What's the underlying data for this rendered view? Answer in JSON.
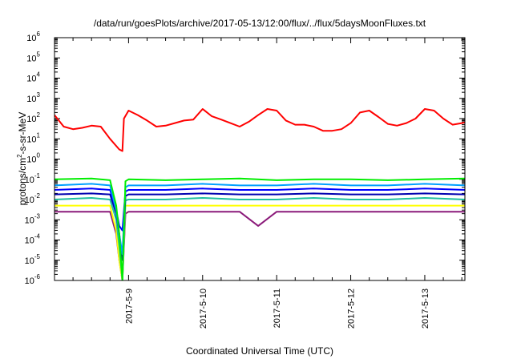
{
  "chart_data": {
    "type": "line",
    "title": "/data/run/goesPlots/archive/2017-05-13/12:00/flux/../flux/5daysMoonFluxes.txt",
    "xlabel": "Coordinated Universal Time (UTC)",
    "ylabel": {
      "pre": "protons/cm",
      "sup": "2",
      "post": "-s-sr-MeV"
    },
    "y_scale": "log",
    "ylim": [
      1e-06,
      1000000
    ],
    "y_ticks": [
      {
        "base": "10",
        "exp": "-6"
      },
      {
        "base": "10",
        "exp": "-5"
      },
      {
        "base": "10",
        "exp": "-4"
      },
      {
        "base": "10",
        "exp": "-3"
      },
      {
        "base": "10",
        "exp": "-2"
      },
      {
        "base": "10",
        "exp": "-1"
      },
      {
        "base": "10",
        "exp": "0"
      },
      {
        "base": "10",
        "exp": "1"
      },
      {
        "base": "10",
        "exp": "2"
      },
      {
        "base": "10",
        "exp": "3"
      },
      {
        "base": "10",
        "exp": "4"
      },
      {
        "base": "10",
        "exp": "5"
      },
      {
        "base": "10",
        "exp": "6"
      }
    ],
    "xlim": [
      "2017-05-08 00:00",
      "2017-05-13 13:00"
    ],
    "x_ticks": [
      "2017-5-9",
      "2017-5-10",
      "2017-5-11",
      "2017-5-12",
      "2017-5-13"
    ],
    "grid": false,
    "legend": "none",
    "series": [
      {
        "color": "#ff0000",
        "x": [
          "2017-05-08 00:00",
          "2017-05-08 03:00",
          "2017-05-08 06:00",
          "2017-05-08 09:00",
          "2017-05-08 12:00",
          "2017-05-08 15:00",
          "2017-05-08 18:00",
          "2017-05-08 21:00",
          "2017-05-08 22:00",
          "2017-05-08 22:30",
          "2017-05-09 00:00",
          "2017-05-09 03:00",
          "2017-05-09 06:00",
          "2017-05-09 09:00",
          "2017-05-09 12:00",
          "2017-05-09 15:00",
          "2017-05-09 18:00",
          "2017-05-09 21:00",
          "2017-05-10 00:00",
          "2017-05-10 03:00",
          "2017-05-10 06:00",
          "2017-05-10 09:00",
          "2017-05-10 12:00",
          "2017-05-10 15:00",
          "2017-05-10 18:00",
          "2017-05-10 21:00",
          "2017-05-11 00:00",
          "2017-05-11 03:00",
          "2017-05-11 06:00",
          "2017-05-11 09:00",
          "2017-05-11 12:00",
          "2017-05-11 15:00",
          "2017-05-11 18:00",
          "2017-05-11 21:00",
          "2017-05-12 00:00",
          "2017-05-12 03:00",
          "2017-05-12 06:00",
          "2017-05-12 09:00",
          "2017-05-12 12:00",
          "2017-05-12 15:00",
          "2017-05-12 18:00",
          "2017-05-12 21:00",
          "2017-05-13 00:00",
          "2017-05-13 03:00",
          "2017-05-13 06:00",
          "2017-05-13 09:00",
          "2017-05-13 12:00",
          "2017-05-13 13:00"
        ],
        "y": [
          150,
          40,
          30,
          35,
          45,
          40,
          10,
          3,
          2.5,
          100,
          250,
          150,
          80,
          40,
          45,
          60,
          80,
          90,
          300,
          130,
          90,
          60,
          40,
          70,
          150,
          300,
          250,
          80,
          50,
          50,
          40,
          25,
          25,
          30,
          60,
          200,
          250,
          120,
          55,
          45,
          60,
          100,
          300,
          250,
          100,
          50,
          60,
          65
        ]
      },
      {
        "color": "#00ee00",
        "x": [
          "2017-05-08 00:00",
          "2017-05-08 12:00",
          "2017-05-08 18:00",
          "2017-05-08 20:00",
          "2017-05-08 21:00",
          "2017-05-08 22:00",
          "2017-05-08 23:00",
          "2017-05-09 00:00",
          "2017-05-09 12:00",
          "2017-05-10 00:00",
          "2017-05-10 12:00",
          "2017-05-11 00:00",
          "2017-05-11 12:00",
          "2017-05-12 00:00",
          "2017-05-12 12:00",
          "2017-05-13 00:00",
          "2017-05-13 13:00"
        ],
        "y": [
          0.1,
          0.11,
          0.09,
          0.005,
          0.0002,
          1e-06,
          0.08,
          0.1,
          0.09,
          0.1,
          0.11,
          0.09,
          0.1,
          0.1,
          0.09,
          0.1,
          0.11
        ]
      },
      {
        "color": "#00a0ff",
        "x": [
          "2017-05-08 00:00",
          "2017-05-08 12:00",
          "2017-05-08 18:00",
          "2017-05-08 20:00",
          "2017-05-08 21:00",
          "2017-05-08 22:00",
          "2017-05-08 23:00",
          "2017-05-09 00:00",
          "2017-05-09 12:00",
          "2017-05-10 00:00",
          "2017-05-10 12:00",
          "2017-05-11 00:00",
          "2017-05-11 12:00",
          "2017-05-12 00:00",
          "2017-05-12 12:00",
          "2017-05-13 00:00",
          "2017-05-13 13:00"
        ],
        "y": [
          0.05,
          0.06,
          0.05,
          0.003,
          0.0002,
          2e-05,
          0.04,
          0.05,
          0.05,
          0.06,
          0.05,
          0.05,
          0.06,
          0.05,
          0.05,
          0.06,
          0.05
        ]
      },
      {
        "color": "#0000ff",
        "x": [
          "2017-05-08 00:00",
          "2017-05-08 12:00",
          "2017-05-08 18:00",
          "2017-05-08 20:00",
          "2017-05-08 21:00",
          "2017-05-08 22:00",
          "2017-05-08 23:00",
          "2017-05-09 00:00",
          "2017-05-09 12:00",
          "2017-05-10 00:00",
          "2017-05-10 12:00",
          "2017-05-11 00:00",
          "2017-05-11 12:00",
          "2017-05-12 00:00",
          "2017-05-12 12:00",
          "2017-05-13 00:00",
          "2017-05-13 13:00"
        ],
        "y": [
          0.03,
          0.035,
          0.03,
          0.003,
          0.0005,
          0.0003,
          0.025,
          0.03,
          0.03,
          0.035,
          0.03,
          0.03,
          0.035,
          0.03,
          0.03,
          0.035,
          0.03
        ]
      },
      {
        "color": "#0000b0",
        "x": [
          "2017-05-08 00:00",
          "2017-05-08 12:00",
          "2017-05-08 18:00",
          "2017-05-08 20:00",
          "2017-05-08 21:00",
          "2017-05-08 22:00",
          "2017-05-08 23:00",
          "2017-05-09 00:00",
          "2017-05-09 12:00",
          "2017-05-10 00:00",
          "2017-05-10 12:00",
          "2017-05-11 00:00",
          "2017-05-11 12:00",
          "2017-05-12 00:00",
          "2017-05-12 12:00",
          "2017-05-13 00:00",
          "2017-05-13 13:00"
        ],
        "y": [
          0.018,
          0.02,
          0.018,
          0.002,
          0.0002,
          1e-05,
          0.015,
          0.018,
          0.018,
          0.02,
          0.018,
          0.018,
          0.02,
          0.018,
          0.018,
          0.02,
          0.018
        ]
      },
      {
        "color": "#20c0a0",
        "x": [
          "2017-05-08 00:00",
          "2017-05-08 12:00",
          "2017-05-08 18:00",
          "2017-05-08 20:00",
          "2017-05-08 21:00",
          "2017-05-08 22:00",
          "2017-05-08 23:00",
          "2017-05-09 00:00",
          "2017-05-09 12:00",
          "2017-05-10 00:00",
          "2017-05-10 12:00",
          "2017-05-11 00:00",
          "2017-05-11 12:00",
          "2017-05-12 00:00",
          "2017-05-12 12:00",
          "2017-05-13 00:00",
          "2017-05-13 13:00"
        ],
        "y": [
          0.01,
          0.012,
          0.01,
          0.001,
          5e-05,
          1e-06,
          0.009,
          0.01,
          0.01,
          0.012,
          0.01,
          0.01,
          0.012,
          0.01,
          0.01,
          0.012,
          0.01
        ]
      },
      {
        "color": "#ffff00",
        "x": [
          "2017-05-08 00:00",
          "2017-05-08 12:00",
          "2017-05-08 18:00",
          "2017-05-08 20:00",
          "2017-05-08 21:00",
          "2017-05-08 22:00",
          "2017-05-08 23:00",
          "2017-05-09 00:00",
          "2017-05-09 12:00",
          "2017-05-10 00:00",
          "2017-05-10 12:00",
          "2017-05-11 00:00",
          "2017-05-11 12:00",
          "2017-05-12 00:00",
          "2017-05-12 12:00",
          "2017-05-13 00:00",
          "2017-05-13 13:00"
        ],
        "y": [
          0.005,
          0.005,
          0.005,
          0.0003,
          1e-05,
          1e-06,
          0.005,
          0.005,
          0.005,
          0.005,
          0.005,
          0.005,
          0.005,
          0.005,
          0.005,
          0.005,
          0.005
        ]
      },
      {
        "color": "#8b1a7a",
        "x": [
          "2017-05-08 00:00",
          "2017-05-08 12:00",
          "2017-05-08 18:00",
          "2017-05-08 20:00",
          "2017-05-08 21:00",
          "2017-05-08 22:00",
          "2017-05-08 23:00",
          "2017-05-09 00:00",
          "2017-05-09 12:00",
          "2017-05-10 00:00",
          "2017-05-10 12:00",
          "2017-05-10 18:00",
          "2017-05-11 00:00",
          "2017-05-11 12:00",
          "2017-05-12 00:00",
          "2017-05-12 12:00",
          "2017-05-13 00:00",
          "2017-05-13 13:00"
        ],
        "y": [
          0.0025,
          0.0025,
          0.0025,
          0.0002,
          1e-05,
          1e-06,
          0.002,
          0.0025,
          0.0025,
          0.0025,
          0.0025,
          0.0005,
          0.0025,
          0.0025,
          0.0025,
          0.0025,
          0.0025,
          0.0025
        ]
      }
    ]
  }
}
